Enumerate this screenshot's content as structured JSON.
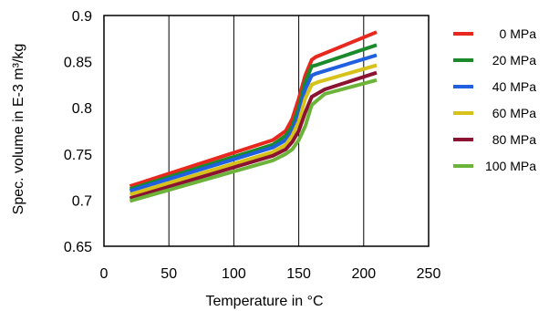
{
  "chart_data": {
    "type": "line",
    "title": "",
    "xlabel": "Temperature in °C",
    "ylabel": "Spec. volume in E-3 m³/kg",
    "xlim": [
      0,
      250
    ],
    "ylim": [
      0.65,
      0.9
    ],
    "xticks": [
      0,
      50,
      100,
      150,
      200,
      250
    ],
    "yticks": [
      0.65,
      0.7,
      0.75,
      0.8,
      0.85,
      0.9
    ],
    "xtick_labels": [
      "0",
      "50",
      "100",
      "150",
      "200",
      "250"
    ],
    "ytick_labels": [
      "0.65",
      "0.7",
      "0.75",
      "0.8",
      "0.85",
      "0.9"
    ],
    "grid": "vertical",
    "legend_position": "right",
    "series": [
      {
        "name": "0 MPa",
        "color": "#e8281e",
        "x": [
          20,
          130,
          140,
          145,
          150,
          155,
          160,
          163,
          210
        ],
        "y": [
          0.715,
          0.765,
          0.775,
          0.788,
          0.81,
          0.835,
          0.852,
          0.855,
          0.882
        ]
      },
      {
        "name": "20 MPa",
        "color": "#1a8a2a",
        "x": [
          20,
          130,
          140,
          145,
          150,
          155,
          160,
          163,
          210
        ],
        "y": [
          0.712,
          0.76,
          0.77,
          0.78,
          0.8,
          0.828,
          0.845,
          0.846,
          0.868
        ]
      },
      {
        "name": "40 MPa",
        "color": "#1f5fe0",
        "x": [
          20,
          130,
          140,
          145,
          150,
          155,
          160,
          163,
          210
        ],
        "y": [
          0.71,
          0.757,
          0.765,
          0.775,
          0.793,
          0.82,
          0.835,
          0.837,
          0.857
        ]
      },
      {
        "name": "60 MPa",
        "color": "#d6c21a",
        "x": [
          20,
          130,
          140,
          145,
          150,
          155,
          160,
          165,
          210
        ],
        "y": [
          0.706,
          0.752,
          0.76,
          0.77,
          0.785,
          0.81,
          0.825,
          0.828,
          0.846
        ]
      },
      {
        "name": "80 MPa",
        "color": "#8b1230",
        "x": [
          20,
          130,
          140,
          145,
          150,
          155,
          160,
          170,
          210
        ],
        "y": [
          0.702,
          0.748,
          0.755,
          0.763,
          0.775,
          0.795,
          0.812,
          0.82,
          0.838
        ]
      },
      {
        "name": "100 MPa",
        "color": "#6cb33a",
        "x": [
          20,
          130,
          140,
          145,
          150,
          155,
          160,
          170,
          210
        ],
        "y": [
          0.699,
          0.743,
          0.75,
          0.755,
          0.765,
          0.78,
          0.803,
          0.815,
          0.83
        ]
      }
    ]
  }
}
